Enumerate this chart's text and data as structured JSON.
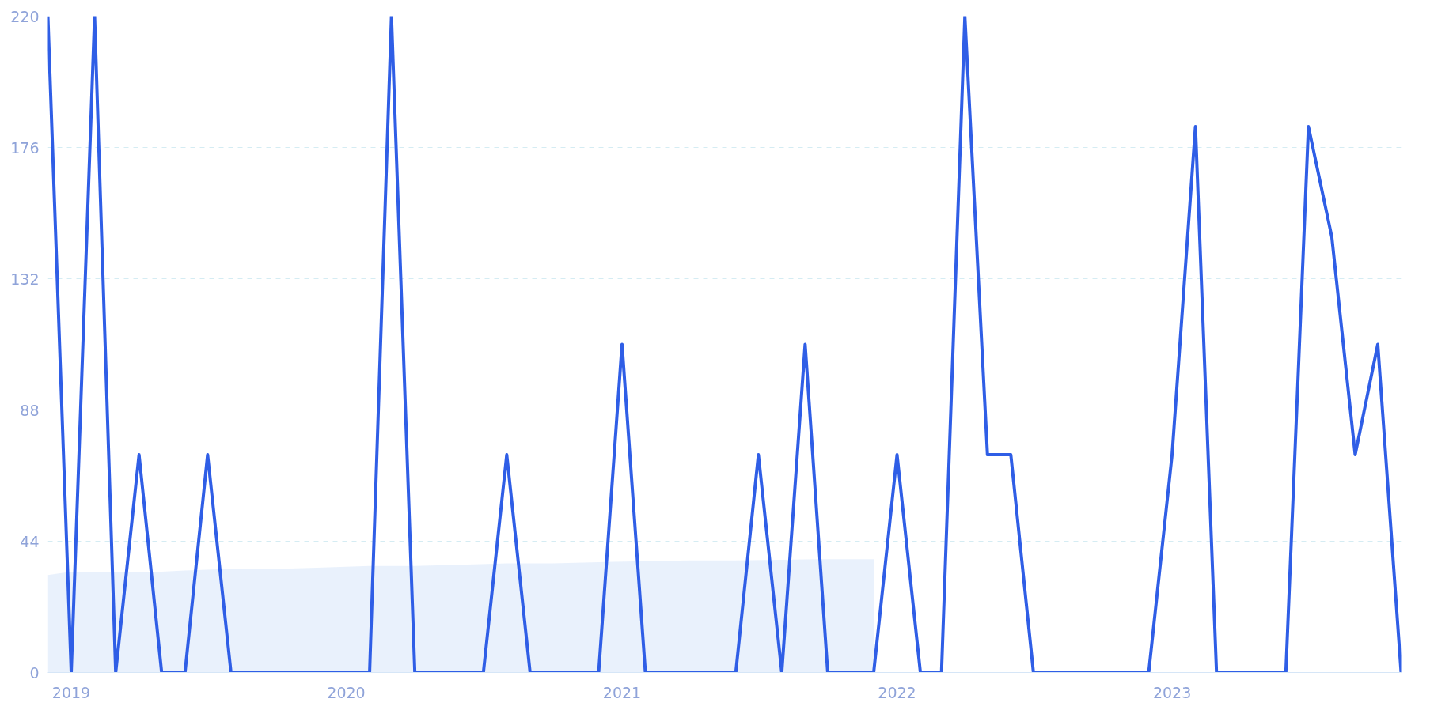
{
  "chart_data": {
    "type": "line",
    "x": [
      "2018-12",
      "2019-01",
      "2019-02",
      "2019-03",
      "2019-04",
      "2019-05",
      "2019-06",
      "2019-07",
      "2019-08",
      "2019-09",
      "2019-10",
      "2019-11",
      "2019-12",
      "2020-01",
      "2020-02",
      "2020-03",
      "2020-04",
      "2020-05",
      "2020-06",
      "2020-07",
      "2020-08",
      "2020-09",
      "2020-10",
      "2020-11",
      "2020-12",
      "2021-01",
      "2021-02",
      "2021-03",
      "2021-04",
      "2021-05",
      "2021-06",
      "2021-07",
      "2021-08",
      "2021-09",
      "2021-10",
      "2021-11",
      "2021-12",
      "2022-01",
      "2022-02",
      "2022-03",
      "2022-04",
      "2022-05",
      "2022-06",
      "2022-07",
      "2022-08",
      "2022-09",
      "2022-10",
      "2022-11",
      "2022-12",
      "2023-01",
      "2023-02",
      "2023-03",
      "2023-04",
      "2023-05",
      "2023-06",
      "2023-07",
      "2023-08",
      "2023-09",
      "2023-10",
      "2023-11"
    ],
    "series": [
      {
        "type": "area",
        "color": "#e3eefb",
        "x": [
          "2018-12",
          "2019-01",
          "2019-03",
          "2019-05",
          "2019-06",
          "2019-08",
          "2019-10",
          "2019-12",
          "2020-02",
          "2020-04",
          "2020-06",
          "2020-08",
          "2020-10",
          "2020-12",
          "2021-02",
          "2021-04",
          "2021-06",
          "2021-08",
          "2021-10",
          "2021-12"
        ],
        "values": [
          32.7,
          33.8,
          33.8,
          33.8,
          34.2,
          34.7,
          34.7,
          35.2,
          35.7,
          35.7,
          36.1,
          36.6,
          36.6,
          37.0,
          37.3,
          37.6,
          37.6,
          37.8,
          38.0,
          38.0
        ]
      },
      {
        "color": "#2f5ee6",
        "values": [
          220,
          0,
          220,
          0,
          73,
          0,
          0,
          73,
          0,
          0,
          0,
          0,
          0,
          0,
          0,
          220,
          0,
          0,
          0,
          0,
          73,
          0,
          0,
          0,
          0,
          110,
          0,
          0,
          0,
          0,
          0,
          73,
          0,
          110,
          0,
          0,
          0,
          73,
          0,
          0,
          220,
          73,
          73,
          0,
          0,
          0,
          0,
          0,
          0,
          73,
          183,
          0,
          0,
          0,
          0,
          183,
          146,
          73,
          110,
          0
        ]
      }
    ],
    "xlim": [
      "2018-12",
      "2023-11"
    ],
    "xticks": [
      "2019",
      "2020",
      "2021",
      "2022",
      "2023"
    ],
    "ylim": [
      0,
      220
    ],
    "yticks": [
      0,
      44,
      88,
      132,
      176,
      220
    ],
    "grid": "y",
    "marker": "none",
    "line_style": "solid"
  }
}
